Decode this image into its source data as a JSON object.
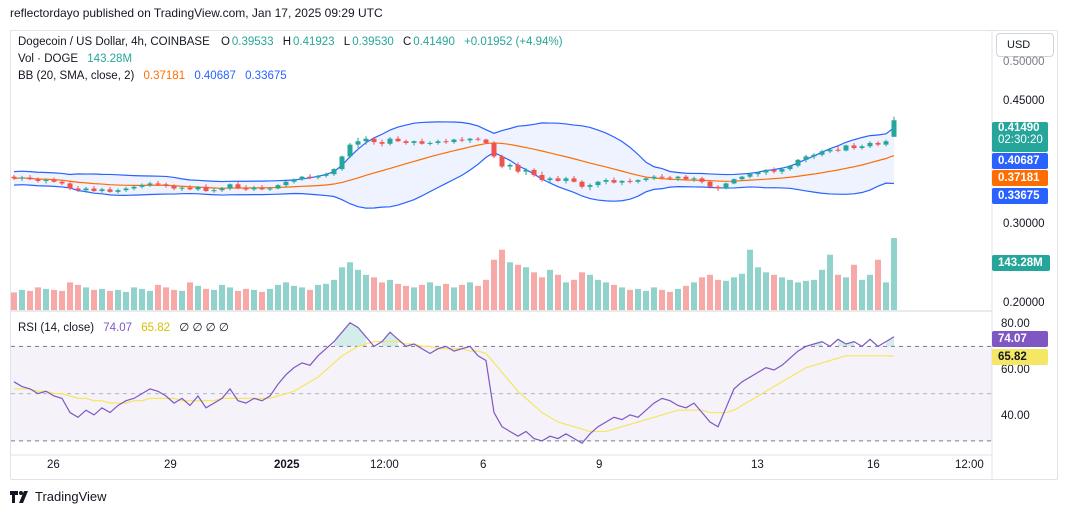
{
  "header": {
    "published": "reflectordayo published on TradingView.com, Jan 17, 2025 09:29 UTC"
  },
  "legend": {
    "symbol": "Dogecoin / US Dollar, 4h, COINBASE",
    "o_label": "O",
    "o": "0.39533",
    "h_label": "H",
    "h": "0.41923",
    "l_label": "L",
    "l": "0.39530",
    "c_label": "C",
    "c": "0.41490",
    "change": "+0.01952 (+4.94%)",
    "vol_label": "Vol · DOGE",
    "vol": "143.28M",
    "bb_label": "BB (20, SMA, close, 2)",
    "bb_basis": "0.37181",
    "bb_upper": "0.40687",
    "bb_lower": "0.33675",
    "rsi_label": "RSI (14, close)",
    "rsi": "74.07",
    "rsi_ma": "65.82",
    "rsi_extra": "∅ ∅ ∅ ∅"
  },
  "currency": "USD",
  "price_axis": [
    "0.50000",
    "0.45000",
    "0.30000",
    "0.20000"
  ],
  "price_tags": {
    "last": "0.41490",
    "countdown": "02:30:20",
    "upper": "0.40687",
    "basis": "0.37181",
    "lower": "0.33675",
    "volume": "143.28M"
  },
  "rsi_axis": [
    "80.00",
    "60.00",
    "40.00"
  ],
  "rsi_tags": {
    "rsi": "74.07",
    "ma": "65.82"
  },
  "x_axis": [
    "26",
    "29",
    "2025",
    "12:00",
    "6",
    "9",
    "13",
    "16",
    "12:00"
  ],
  "footer": {
    "brand": "TradingView"
  },
  "colors": {
    "up": "#26a69a",
    "down": "#ef5350",
    "bb_line": "#2962ff",
    "basis": "#ff6d00",
    "rsi": "#7e57c2",
    "rsi_ma": "#f5e663"
  },
  "chart_data": {
    "type": "candlestick",
    "symbol": "DOGE/USD",
    "timeframe": "4h",
    "price_range": [
      0.19,
      0.51
    ],
    "candles": [
      [
        0.348,
        0.35,
        0.344,
        0.346
      ],
      [
        0.346,
        0.349,
        0.343,
        0.347
      ],
      [
        0.347,
        0.35,
        0.344,
        0.345
      ],
      [
        0.345,
        0.347,
        0.341,
        0.343
      ],
      [
        0.343,
        0.346,
        0.34,
        0.344
      ],
      [
        0.344,
        0.347,
        0.341,
        0.342
      ],
      [
        0.342,
        0.344,
        0.338,
        0.34
      ],
      [
        0.34,
        0.342,
        0.332,
        0.334
      ],
      [
        0.334,
        0.337,
        0.33,
        0.332
      ],
      [
        0.332,
        0.336,
        0.329,
        0.334
      ],
      [
        0.334,
        0.337,
        0.33,
        0.331
      ],
      [
        0.331,
        0.335,
        0.329,
        0.333
      ],
      [
        0.333,
        0.336,
        0.329,
        0.33
      ],
      [
        0.33,
        0.334,
        0.328,
        0.332
      ],
      [
        0.332,
        0.336,
        0.33,
        0.334
      ],
      [
        0.334,
        0.338,
        0.332,
        0.336
      ],
      [
        0.336,
        0.34,
        0.334,
        0.338
      ],
      [
        0.338,
        0.342,
        0.336,
        0.34
      ],
      [
        0.34,
        0.343,
        0.337,
        0.339
      ],
      [
        0.339,
        0.341,
        0.335,
        0.337
      ],
      [
        0.337,
        0.339,
        0.332,
        0.334
      ],
      [
        0.334,
        0.337,
        0.331,
        0.335
      ],
      [
        0.335,
        0.338,
        0.332,
        0.333
      ],
      [
        0.333,
        0.337,
        0.331,
        0.336
      ],
      [
        0.336,
        0.339,
        0.33,
        0.331
      ],
      [
        0.331,
        0.334,
        0.329,
        0.332
      ],
      [
        0.332,
        0.336,
        0.33,
        0.334
      ],
      [
        0.334,
        0.34,
        0.332,
        0.339
      ],
      [
        0.339,
        0.342,
        0.333,
        0.334
      ],
      [
        0.334,
        0.338,
        0.331,
        0.333
      ],
      [
        0.333,
        0.337,
        0.331,
        0.335
      ],
      [
        0.335,
        0.338,
        0.332,
        0.333
      ],
      [
        0.333,
        0.336,
        0.331,
        0.334
      ],
      [
        0.334,
        0.339,
        0.333,
        0.338
      ],
      [
        0.338,
        0.343,
        0.336,
        0.342
      ],
      [
        0.342,
        0.346,
        0.34,
        0.345
      ],
      [
        0.345,
        0.349,
        0.343,
        0.348
      ],
      [
        0.348,
        0.351,
        0.345,
        0.347
      ],
      [
        0.347,
        0.35,
        0.345,
        0.349
      ],
      [
        0.349,
        0.353,
        0.347,
        0.351
      ],
      [
        0.351,
        0.358,
        0.349,
        0.357
      ],
      [
        0.357,
        0.373,
        0.355,
        0.372
      ],
      [
        0.372,
        0.388,
        0.37,
        0.386
      ],
      [
        0.386,
        0.394,
        0.382,
        0.39
      ],
      [
        0.39,
        0.396,
        0.386,
        0.393
      ],
      [
        0.393,
        0.395,
        0.386,
        0.389
      ],
      [
        0.389,
        0.392,
        0.384,
        0.387
      ],
      [
        0.387,
        0.395,
        0.385,
        0.393
      ],
      [
        0.393,
        0.396,
        0.389,
        0.39
      ],
      [
        0.39,
        0.392,
        0.386,
        0.388
      ],
      [
        0.388,
        0.391,
        0.385,
        0.39
      ],
      [
        0.39,
        0.393,
        0.386,
        0.387
      ],
      [
        0.387,
        0.39,
        0.385,
        0.388
      ],
      [
        0.388,
        0.392,
        0.386,
        0.39
      ],
      [
        0.39,
        0.393,
        0.387,
        0.389
      ],
      [
        0.389,
        0.393,
        0.387,
        0.392
      ],
      [
        0.392,
        0.395,
        0.389,
        0.391
      ],
      [
        0.391,
        0.394,
        0.388,
        0.393
      ],
      [
        0.393,
        0.395,
        0.39,
        0.392
      ],
      [
        0.392,
        0.393,
        0.387,
        0.388
      ],
      [
        0.388,
        0.39,
        0.37,
        0.372
      ],
      [
        0.372,
        0.374,
        0.358,
        0.36
      ],
      [
        0.36,
        0.364,
        0.356,
        0.362
      ],
      [
        0.362,
        0.365,
        0.352,
        0.354
      ],
      [
        0.354,
        0.358,
        0.35,
        0.356
      ],
      [
        0.356,
        0.358,
        0.348,
        0.35
      ],
      [
        0.35,
        0.354,
        0.342,
        0.344
      ],
      [
        0.344,
        0.348,
        0.341,
        0.346
      ],
      [
        0.346,
        0.349,
        0.342,
        0.343
      ],
      [
        0.343,
        0.348,
        0.34,
        0.346
      ],
      [
        0.346,
        0.349,
        0.341,
        0.342
      ],
      [
        0.342,
        0.344,
        0.334,
        0.336
      ],
      [
        0.336,
        0.34,
        0.332,
        0.338
      ],
      [
        0.338,
        0.343,
        0.335,
        0.342
      ],
      [
        0.342,
        0.346,
        0.339,
        0.344
      ],
      [
        0.344,
        0.347,
        0.34,
        0.341
      ],
      [
        0.341,
        0.344,
        0.338,
        0.343
      ],
      [
        0.343,
        0.346,
        0.34,
        0.342
      ],
      [
        0.342,
        0.345,
        0.34,
        0.344
      ],
      [
        0.344,
        0.347,
        0.342,
        0.346
      ],
      [
        0.346,
        0.35,
        0.344,
        0.348
      ],
      [
        0.348,
        0.351,
        0.345,
        0.347
      ],
      [
        0.347,
        0.349,
        0.344,
        0.346
      ],
      [
        0.346,
        0.349,
        0.343,
        0.348
      ],
      [
        0.348,
        0.35,
        0.344,
        0.345
      ],
      [
        0.345,
        0.348,
        0.342,
        0.346
      ],
      [
        0.346,
        0.348,
        0.34,
        0.342
      ],
      [
        0.342,
        0.344,
        0.334,
        0.336
      ],
      [
        0.336,
        0.338,
        0.331,
        0.334
      ],
      [
        0.334,
        0.341,
        0.333,
        0.34
      ],
      [
        0.34,
        0.346,
        0.339,
        0.345
      ],
      [
        0.345,
        0.349,
        0.343,
        0.348
      ],
      [
        0.348,
        0.352,
        0.346,
        0.351
      ],
      [
        0.351,
        0.354,
        0.348,
        0.353
      ],
      [
        0.353,
        0.357,
        0.35,
        0.356
      ],
      [
        0.356,
        0.359,
        0.352,
        0.354
      ],
      [
        0.354,
        0.358,
        0.351,
        0.357
      ],
      [
        0.357,
        0.362,
        0.355,
        0.361
      ],
      [
        0.361,
        0.369,
        0.359,
        0.368
      ],
      [
        0.368,
        0.374,
        0.365,
        0.372
      ],
      [
        0.372,
        0.376,
        0.369,
        0.374
      ],
      [
        0.374,
        0.38,
        0.372,
        0.378
      ],
      [
        0.378,
        0.382,
        0.376,
        0.38
      ],
      [
        0.38,
        0.384,
        0.377,
        0.379
      ],
      [
        0.379,
        0.386,
        0.378,
        0.385
      ],
      [
        0.385,
        0.388,
        0.38,
        0.382
      ],
      [
        0.382,
        0.386,
        0.38,
        0.384
      ],
      [
        0.384,
        0.39,
        0.382,
        0.388
      ],
      [
        0.388,
        0.39,
        0.384,
        0.386
      ],
      [
        0.386,
        0.392,
        0.384,
        0.39
      ],
      [
        0.3953,
        0.4192,
        0.3953,
        0.4149
      ]
    ],
    "volume_M": [
      35,
      40,
      38,
      45,
      42,
      40,
      38,
      55,
      50,
      45,
      40,
      42,
      38,
      40,
      36,
      45,
      42,
      38,
      50,
      45,
      40,
      38,
      55,
      48,
      42,
      40,
      50,
      45,
      38,
      42,
      40,
      36,
      42,
      50,
      55,
      48,
      45,
      40,
      50,
      52,
      60,
      85,
      95,
      80,
      70,
      65,
      55,
      60,
      52,
      48,
      45,
      50,
      55,
      48,
      52,
      45,
      50,
      55,
      48,
      60,
      100,
      120,
      95,
      90,
      85,
      75,
      65,
      80,
      70,
      55,
      60,
      75,
      70,
      60,
      55,
      50,
      45,
      40,
      42,
      38,
      45,
      40,
      36,
      42,
      48,
      55,
      65,
      70,
      60,
      58,
      65,
      72,
      120,
      85,
      75,
      70,
      65,
      60,
      55,
      58,
      60,
      80,
      110,
      70,
      65,
      90,
      60,
      70,
      100,
      55,
      143.28
    ],
    "rsi_range": [
      27,
      82
    ],
    "rsi": [
      55,
      53,
      52,
      50,
      51,
      49,
      48,
      42,
      40,
      43,
      41,
      44,
      42,
      45,
      47,
      48,
      50,
      52,
      51,
      49,
      46,
      48,
      45,
      49,
      44,
      46,
      48,
      52,
      47,
      46,
      48,
      47,
      49,
      54,
      58,
      61,
      63,
      62,
      66,
      69,
      72,
      76,
      80,
      78,
      74,
      70,
      72,
      76,
      73,
      70,
      71,
      69,
      67,
      69,
      70,
      68,
      69,
      70,
      66,
      64,
      42,
      36,
      34,
      32,
      34,
      31,
      30,
      32,
      31,
      33,
      31,
      29,
      33,
      36,
      38,
      40,
      39,
      41,
      40,
      43,
      46,
      48,
      47,
      45,
      44,
      46,
      42,
      38,
      36,
      44,
      52,
      55,
      57,
      59,
      61,
      60,
      62,
      65,
      68,
      70,
      71,
      72,
      70,
      73,
      71,
      72,
      70,
      73,
      70,
      72,
      74.07
    ],
    "rsi_ma": [
      52,
      52,
      52,
      51,
      51,
      50,
      50,
      49,
      48,
      48,
      47,
      47,
      46,
      46,
      46,
      47,
      47,
      48,
      48,
      48,
      48,
      47,
      47,
      47,
      47,
      47,
      48,
      48,
      48,
      48,
      48,
      48,
      48,
      49,
      50,
      51,
      53,
      55,
      57,
      60,
      63,
      66,
      68,
      70,
      71,
      72,
      72,
      72,
      72,
      71,
      71,
      70,
      70,
      69,
      69,
      69,
      69,
      68,
      68,
      67,
      63,
      59,
      55,
      51,
      48,
      45,
      42,
      40,
      38,
      37,
      36,
      35,
      34,
      34,
      34,
      35,
      36,
      37,
      38,
      39,
      40,
      41,
      42,
      43,
      43,
      43,
      43,
      42,
      42,
      42,
      43,
      45,
      47,
      49,
      51,
      53,
      55,
      57,
      59,
      61,
      62,
      63,
      64,
      65,
      66,
      66,
      66,
      66,
      66,
      66,
      65.82
    ],
    "overbought": 70,
    "oversold": 30,
    "bollinger": {
      "period": 20,
      "stddev": 2,
      "source": "close"
    }
  }
}
